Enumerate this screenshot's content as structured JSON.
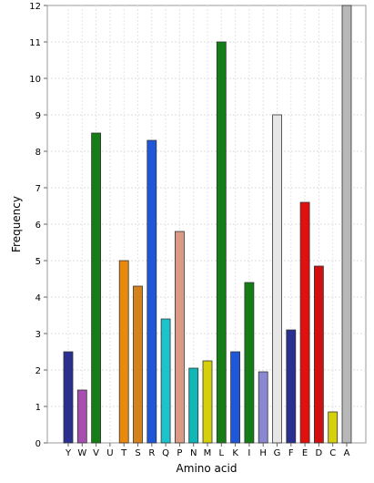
{
  "chart_data": {
    "type": "bar",
    "xlabel": "Amino acid",
    "ylabel": "Frequency",
    "ylim": [
      0,
      12
    ],
    "yticks": [
      0,
      1,
      2,
      3,
      4,
      5,
      6,
      7,
      8,
      9,
      10,
      11,
      12
    ],
    "grid": true,
    "categories": [
      "Y",
      "W",
      "V",
      "U",
      "T",
      "S",
      "R",
      "Q",
      "P",
      "N",
      "M",
      "L",
      "K",
      "I",
      "H",
      "G",
      "F",
      "E",
      "D",
      "C",
      "A"
    ],
    "values": [
      2.5,
      1.45,
      8.5,
      0,
      5.0,
      4.3,
      8.3,
      3.4,
      5.8,
      2.05,
      2.25,
      11.0,
      2.5,
      4.4,
      1.95,
      9.0,
      3.1,
      6.6,
      4.85,
      0.85,
      12.0
    ],
    "colors": [
      "#2b2f8f",
      "#a64fb0",
      "#157d15",
      null,
      "#e98a0c",
      "#d4821c",
      "#1f57d8",
      "#1cc3cc",
      "#d99a86",
      "#11b7b7",
      "#d6cf0b",
      "#157d15",
      "#1f57d8",
      "#157d15",
      "#8a88d0",
      "#e6e6e6",
      "#2b2f8f",
      "#e20f0f",
      "#d20f0f",
      "#d6cf0b",
      "#b8b8b8"
    ]
  }
}
